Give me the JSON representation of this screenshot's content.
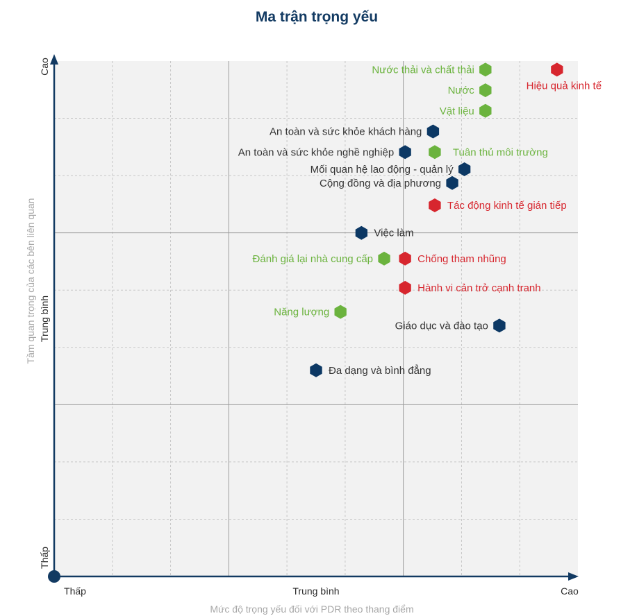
{
  "chart_data": {
    "type": "scatter",
    "title": "Ma trận trọng yếu",
    "xlabel": "Mức độ trọng yếu đối với PDR theo thang điểm",
    "ylabel": "Tầm quan trọng của các bên liên quan",
    "xlim": [
      0,
      3
    ],
    "ylim": [
      0,
      3
    ],
    "x_ticks": [
      "Thấp",
      "Trung bình",
      "Cao"
    ],
    "y_ticks": [
      "Thấp",
      "Trung bình",
      "Cao"
    ],
    "grid": true,
    "colors": {
      "environment": "#6bb33e",
      "economic": "#d7262e",
      "social": "#0c3864",
      "axis": "#123a62",
      "grid_major": "#9c9c9c",
      "grid_minor": "#c6c6c6",
      "plot_bg": "#f2f2f2"
    },
    "points": [
      {
        "label": "Nước thải và chất thải",
        "x": 2.47,
        "y": 2.95,
        "group": "environment"
      },
      {
        "label": "Hiệu quả kinh tế",
        "x": 2.88,
        "y": 2.95,
        "group": "economic"
      },
      {
        "label": "Nước",
        "x": 2.47,
        "y": 2.83,
        "group": "environment"
      },
      {
        "label": "Vật liệu",
        "x": 2.47,
        "y": 2.71,
        "group": "environment"
      },
      {
        "label": "An toàn và sức khỏe khách hàng",
        "x": 2.17,
        "y": 2.59,
        "group": "social"
      },
      {
        "label": "An toàn và sức khỏe nghề nghiệp",
        "x": 2.01,
        "y": 2.47,
        "group": "social"
      },
      {
        "label": "Tuân thủ môi trường",
        "x": 2.18,
        "y": 2.47,
        "group": "environment"
      },
      {
        "label": "Mối quan hệ lao động - quản lý",
        "x": 2.35,
        "y": 2.37,
        "group": "social"
      },
      {
        "label": "Cộng đồng và địa phương",
        "x": 2.28,
        "y": 2.29,
        "group": "social"
      },
      {
        "label": "Tác động kinh tế gián tiếp",
        "x": 2.18,
        "y": 2.16,
        "group": "economic"
      },
      {
        "label": "Việc làm",
        "x": 1.76,
        "y": 2.0,
        "group": "social"
      },
      {
        "label": "Đánh giá lại nhà cung cấp",
        "x": 1.89,
        "y": 1.85,
        "group": "environment"
      },
      {
        "label": "Chống tham nhũng",
        "x": 2.01,
        "y": 1.85,
        "group": "economic"
      },
      {
        "label": "Hành vi cản trở cạnh tranh",
        "x": 2.01,
        "y": 1.68,
        "group": "economic"
      },
      {
        "label": "Năng lượng",
        "x": 1.64,
        "y": 1.54,
        "group": "environment"
      },
      {
        "label": "Giáo dục và đào tạo",
        "x": 2.55,
        "y": 1.46,
        "group": "social"
      },
      {
        "label": "Đa dạng và bình đẳng",
        "x": 1.5,
        "y": 1.2,
        "group": "social"
      }
    ]
  }
}
